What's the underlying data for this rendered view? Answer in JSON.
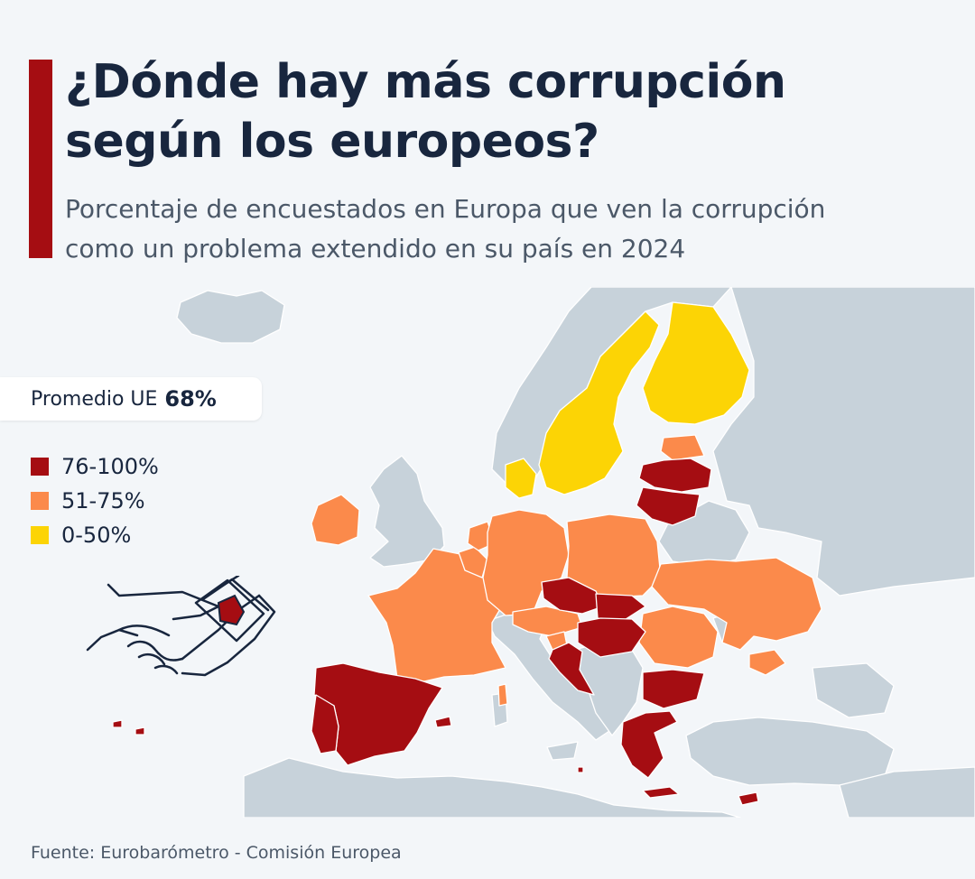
{
  "header": {
    "title_line1": "¿Dónde hay más corrupción",
    "title_line2": "según los europeos?",
    "subtitle_line1": "Porcentaje de encuestados en Europa que ven la corrupción",
    "subtitle_line2": "como un problema extendido en su país en 2024"
  },
  "average": {
    "label": "Promedio UE",
    "value": "68%"
  },
  "legend": {
    "items": [
      {
        "label": "76-100%",
        "color": "#a50d12"
      },
      {
        "label": "51-75%",
        "color": "#fb8a4b"
      },
      {
        "label": "0-50%",
        "color": "#fcd405"
      }
    ]
  },
  "colors": {
    "accent": "#a50d12",
    "land": "#c7d2da",
    "sea": "#f3f6f9",
    "border": "#ffffff",
    "ink": "#18263e"
  },
  "icons": {
    "illustration": "handshake-bribe-icon"
  },
  "source": "Fuente: Eurobarómetro - Comisión Europea"
}
